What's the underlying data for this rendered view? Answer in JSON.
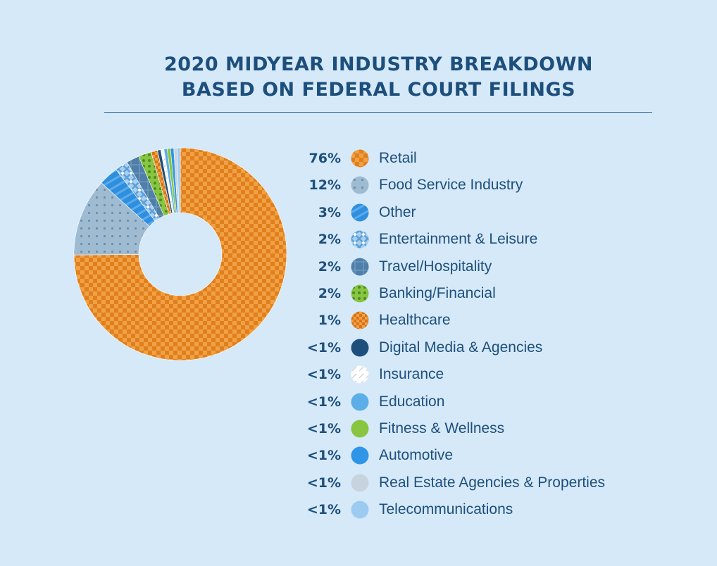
{
  "title_line1": "2020 MIDYEAR INDUSTRY BREAKDOWN",
  "title_line2": "BASED ON FEDERAL COURT FILINGS",
  "chart_data": {
    "type": "pie",
    "variant": "donut",
    "title": "2020 MIDYEAR INDUSTRY BREAKDOWN BASED ON FEDERAL COURT FILINGS",
    "slices": [
      {
        "label": "Retail",
        "display": "76%",
        "value": 76,
        "color": "#e8871c",
        "pattern": "checker-orange"
      },
      {
        "label": "Food Service Industry",
        "display": "12%",
        "value": 12,
        "color": "#8fb2cd",
        "pattern": "dots-gray"
      },
      {
        "label": "Other",
        "display": "3%",
        "value": 3,
        "color": "#2f8fdf",
        "pattern": "stripes-blue"
      },
      {
        "label": "Entertainment & Leisure",
        "display": "2%",
        "value": 2,
        "color": "#8cc1ee",
        "pattern": "cross-lightblue"
      },
      {
        "label": "Travel/Hospitality",
        "display": "2%",
        "value": 2,
        "color": "#4f7ea8",
        "pattern": "grid-steel"
      },
      {
        "label": "Banking/Financial",
        "display": "2%",
        "value": 2,
        "color": "#76b947",
        "pattern": "dots-green"
      },
      {
        "label": "Healthcare",
        "display": "1%",
        "value": 1,
        "color": "#e07f1e",
        "pattern": "checker-orange2"
      },
      {
        "label": "Digital Media & Agencies",
        "display": "<1%",
        "value": 0.5,
        "color": "#1d4f7c",
        "pattern": null
      },
      {
        "label": "Insurance",
        "display": "<1%",
        "value": 0.5,
        "color": "#ffffff",
        "pattern": "dash-white"
      },
      {
        "label": "Education",
        "display": "<1%",
        "value": 0.5,
        "color": "#5caee8",
        "pattern": null
      },
      {
        "label": "Fitness & Wellness",
        "display": "<1%",
        "value": 0.5,
        "color": "#88c540",
        "pattern": null
      },
      {
        "label": "Automotive",
        "display": "<1%",
        "value": 0.5,
        "color": "#2f95e6",
        "pattern": null
      },
      {
        "label": "Real Estate Agencies & Properties",
        "display": "<1%",
        "value": 0.5,
        "color": "#c8d4dd",
        "pattern": null
      },
      {
        "label": "Telecommunications",
        "display": "<1%",
        "value": 0.5,
        "color": "#9ccbf2",
        "pattern": null
      }
    ]
  }
}
